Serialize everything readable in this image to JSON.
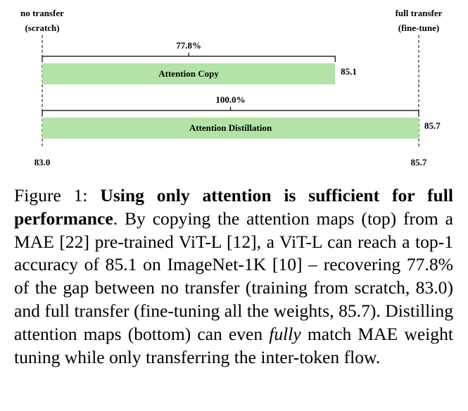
{
  "chart_data": {
    "type": "bar",
    "orientation": "horizontal",
    "categories": [
      "Attention Copy",
      "Attention Distillation"
    ],
    "values": [
      85.1,
      85.7
    ],
    "color": "#b3e3a6",
    "xlim": [
      83.0,
      85.7
    ],
    "xticks": [
      {
        "value": 83.0,
        "label": "83.0"
      },
      85.7
    ],
    "end_labels": [
      [
        "no transfer",
        "(scratch)"
      ],
      [
        "full transfer",
        "(fine-tune)"
      ]
    ],
    "gap_recovered": [
      {
        "value": 77.8,
        "label": "77.8%"
      },
      {
        "value": 100.0,
        "label": "100.0%"
      }
    ]
  },
  "caption": {
    "label": "Figure 1:",
    "bold": "Using only attention is sufficient for full performance",
    "text1": ". By copying the attention maps (top) from a MAE [22] pre-trained ViT-L [12], a ViT-L can reach a top-1 accuracy of 85.1 on ImageNet-1K [10] – recovering 77.8% of the gap between no transfer (training from scratch, 83.0) and full transfer (fine-tuning all the weights, 85.7). Distilling attention maps (bottom) can even ",
    "italic": "fully",
    "text2": " match MAE weight tuning while only transferring the inter-token flow."
  }
}
